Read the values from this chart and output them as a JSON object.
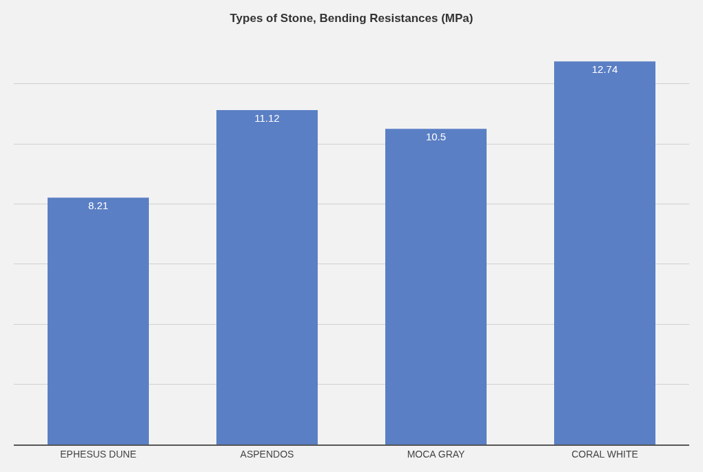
{
  "chart_data": {
    "type": "bar",
    "title": "Types of Stone, Bending Resistances (MPa)",
    "categories": [
      "EPHESUS DUNE",
      "ASPENDOS",
      "MOCA GRAY",
      "CORAL WHITE"
    ],
    "values": [
      8.21,
      11.12,
      10.5,
      12.74
    ],
    "color": "#5b7fc4",
    "yticks": [
      {
        "value": 0,
        "label": null
      },
      {
        "value": 2,
        "label": null
      },
      {
        "value": 4,
        "label": null
      },
      {
        "value": 6,
        "label": null
      },
      {
        "value": 8,
        "label": null
      },
      {
        "value": 10,
        "label": null
      },
      {
        "value": 12,
        "label": null
      }
    ],
    "tick_labels": "x",
    "grid": "y",
    "data_labels": true
  }
}
